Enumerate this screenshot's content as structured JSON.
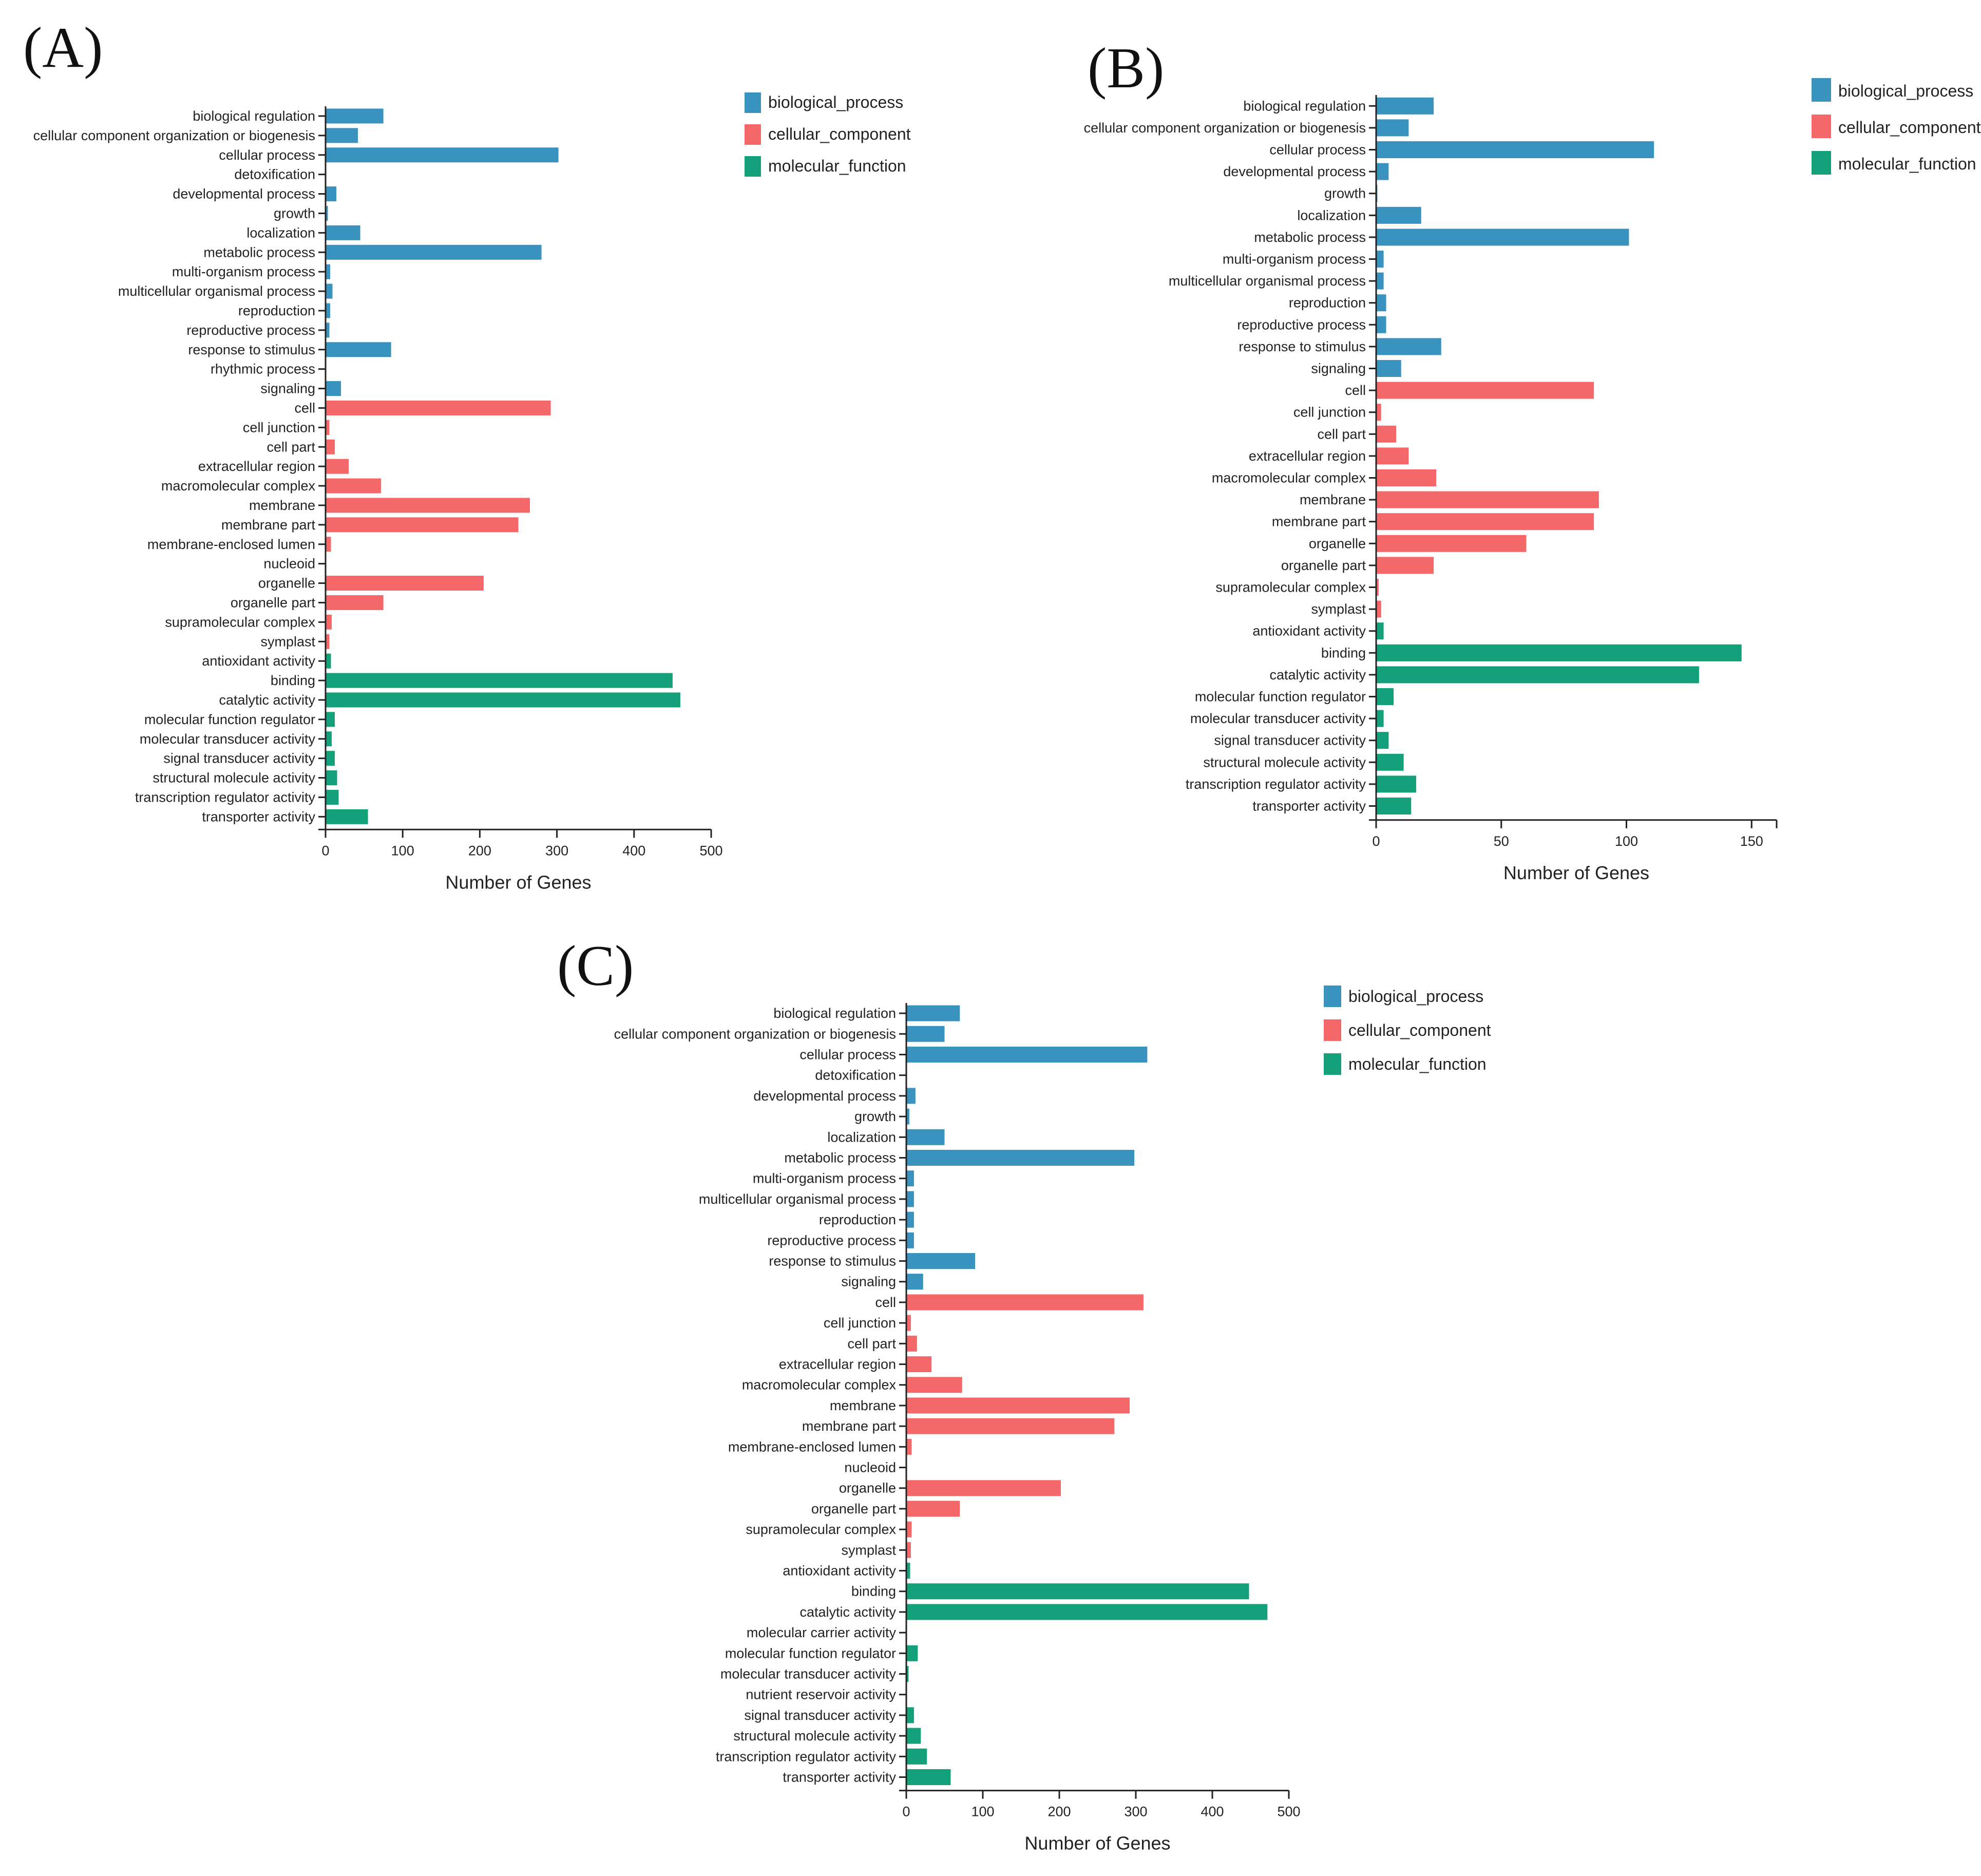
{
  "colors": {
    "biological_process": "#3a93bf",
    "cellular_component": "#f56869",
    "molecular_function": "#14a07a"
  },
  "legend": {
    "items": [
      "biological_process",
      "cellular_component",
      "molecular_function"
    ]
  },
  "chart_data": [
    {
      "type": "bar",
      "orientation": "horizontal",
      "label": "(A)",
      "xlabel": "Number of Genes",
      "xlim": [
        0,
        500
      ],
      "xticks": [
        0,
        100,
        200,
        300,
        400,
        500
      ],
      "categories": [
        "biological regulation",
        "cellular component organization or biogenesis",
        "cellular process",
        "detoxification",
        "developmental process",
        "growth",
        "localization",
        "metabolic process",
        "multi-organism process",
        "multicellular organismal process",
        "reproduction",
        "reproductive process",
        "response to stimulus",
        "rhythmic process",
        "signaling",
        "cell",
        "cell junction",
        "cell part",
        "extracellular region",
        "macromolecular complex",
        "membrane",
        "membrane part",
        "membrane-enclosed lumen",
        "nucleoid",
        "organelle",
        "organelle part",
        "supramolecular complex",
        "symplast",
        "antioxidant activity",
        "binding",
        "catalytic activity",
        "molecular function regulator",
        "molecular transducer activity",
        "signal transducer activity",
        "structural molecule activity",
        "transcription regulator activity",
        "transporter activity"
      ],
      "values": [
        75,
        42,
        302,
        1,
        14,
        3,
        45,
        280,
        6,
        9,
        6,
        5,
        85,
        1,
        20,
        292,
        5,
        12,
        30,
        72,
        265,
        250,
        7,
        1,
        205,
        75,
        8,
        5,
        7,
        450,
        460,
        12,
        8,
        12,
        15,
        17,
        55
      ],
      "groups": [
        "biological_process",
        "biological_process",
        "biological_process",
        "biological_process",
        "biological_process",
        "biological_process",
        "biological_process",
        "biological_process",
        "biological_process",
        "biological_process",
        "biological_process",
        "biological_process",
        "biological_process",
        "biological_process",
        "biological_process",
        "cellular_component",
        "cellular_component",
        "cellular_component",
        "cellular_component",
        "cellular_component",
        "cellular_component",
        "cellular_component",
        "cellular_component",
        "cellular_component",
        "cellular_component",
        "cellular_component",
        "cellular_component",
        "cellular_component",
        "molecular_function",
        "molecular_function",
        "molecular_function",
        "molecular_function",
        "molecular_function",
        "molecular_function",
        "molecular_function",
        "molecular_function",
        "molecular_function"
      ]
    },
    {
      "type": "bar",
      "orientation": "horizontal",
      "label": "(B)",
      "xlabel": "Number of Genes",
      "xlim": [
        0,
        160
      ],
      "xticks": [
        0,
        50,
        100,
        150
      ],
      "categories": [
        "biological regulation",
        "cellular component organization or biogenesis",
        "cellular process",
        "developmental process",
        "growth",
        "localization",
        "metabolic process",
        "multi-organism process",
        "multicellular organismal process",
        "reproduction",
        "reproductive process",
        "response to stimulus",
        "signaling",
        "cell",
        "cell junction",
        "cell part",
        "extracellular region",
        "macromolecular complex",
        "membrane",
        "membrane part",
        "organelle",
        "organelle part",
        "supramolecular complex",
        "symplast",
        "antioxidant activity",
        "binding",
        "catalytic activity",
        "molecular function regulator",
        "molecular transducer activity",
        "signal transducer activity",
        "structural molecule activity",
        "transcription regulator activity",
        "transporter activity"
      ],
      "values": [
        23,
        13,
        111,
        5,
        0.5,
        18,
        101,
        3,
        3,
        4,
        4,
        26,
        10,
        87,
        2,
        8,
        13,
        24,
        89,
        87,
        60,
        23,
        1,
        2,
        3,
        146,
        129,
        7,
        3,
        5,
        11,
        16,
        14
      ],
      "groups": [
        "biological_process",
        "biological_process",
        "biological_process",
        "biological_process",
        "biological_process",
        "biological_process",
        "biological_process",
        "biological_process",
        "biological_process",
        "biological_process",
        "biological_process",
        "biological_process",
        "biological_process",
        "cellular_component",
        "cellular_component",
        "cellular_component",
        "cellular_component",
        "cellular_component",
        "cellular_component",
        "cellular_component",
        "cellular_component",
        "cellular_component",
        "cellular_component",
        "cellular_component",
        "molecular_function",
        "molecular_function",
        "molecular_function",
        "molecular_function",
        "molecular_function",
        "molecular_function",
        "molecular_function",
        "molecular_function",
        "molecular_function"
      ]
    },
    {
      "type": "bar",
      "orientation": "horizontal",
      "label": "(C)",
      "xlabel": "Number of Genes",
      "xlim": [
        0,
        500
      ],
      "xticks": [
        0,
        100,
        200,
        300,
        400,
        500
      ],
      "categories": [
        "biological regulation",
        "cellular component organization or biogenesis",
        "cellular process",
        "detoxification",
        "developmental process",
        "growth",
        "localization",
        "metabolic process",
        "multi-organism process",
        "multicellular organismal process",
        "reproduction",
        "reproductive process",
        "response to stimulus",
        "signaling",
        "cell",
        "cell junction",
        "cell part",
        "extracellular region",
        "macromolecular complex",
        "membrane",
        "membrane part",
        "membrane-enclosed lumen",
        "nucleoid",
        "organelle",
        "organelle part",
        "supramolecular complex",
        "symplast",
        "antioxidant activity",
        "binding",
        "catalytic activity",
        "molecular carrier activity",
        "molecular function regulator",
        "molecular transducer activity",
        "nutrient reservoir activity",
        "signal transducer activity",
        "structural molecule activity",
        "transcription regulator activity",
        "transporter activity"
      ],
      "values": [
        70,
        50,
        315,
        1,
        12,
        4,
        50,
        298,
        10,
        10,
        10,
        10,
        90,
        22,
        310,
        6,
        14,
        33,
        73,
        292,
        272,
        7,
        1,
        202,
        70,
        7,
        6,
        5,
        448,
        472,
        1,
        15,
        3,
        1,
        10,
        19,
        27,
        58
      ],
      "groups": [
        "biological_process",
        "biological_process",
        "biological_process",
        "biological_process",
        "biological_process",
        "biological_process",
        "biological_process",
        "biological_process",
        "biological_process",
        "biological_process",
        "biological_process",
        "biological_process",
        "biological_process",
        "biological_process",
        "cellular_component",
        "cellular_component",
        "cellular_component",
        "cellular_component",
        "cellular_component",
        "cellular_component",
        "cellular_component",
        "cellular_component",
        "cellular_component",
        "cellular_component",
        "cellular_component",
        "cellular_component",
        "cellular_component",
        "molecular_function",
        "molecular_function",
        "molecular_function",
        "molecular_function",
        "molecular_function",
        "molecular_function",
        "molecular_function",
        "molecular_function",
        "molecular_function",
        "molecular_function",
        "molecular_function"
      ]
    }
  ]
}
